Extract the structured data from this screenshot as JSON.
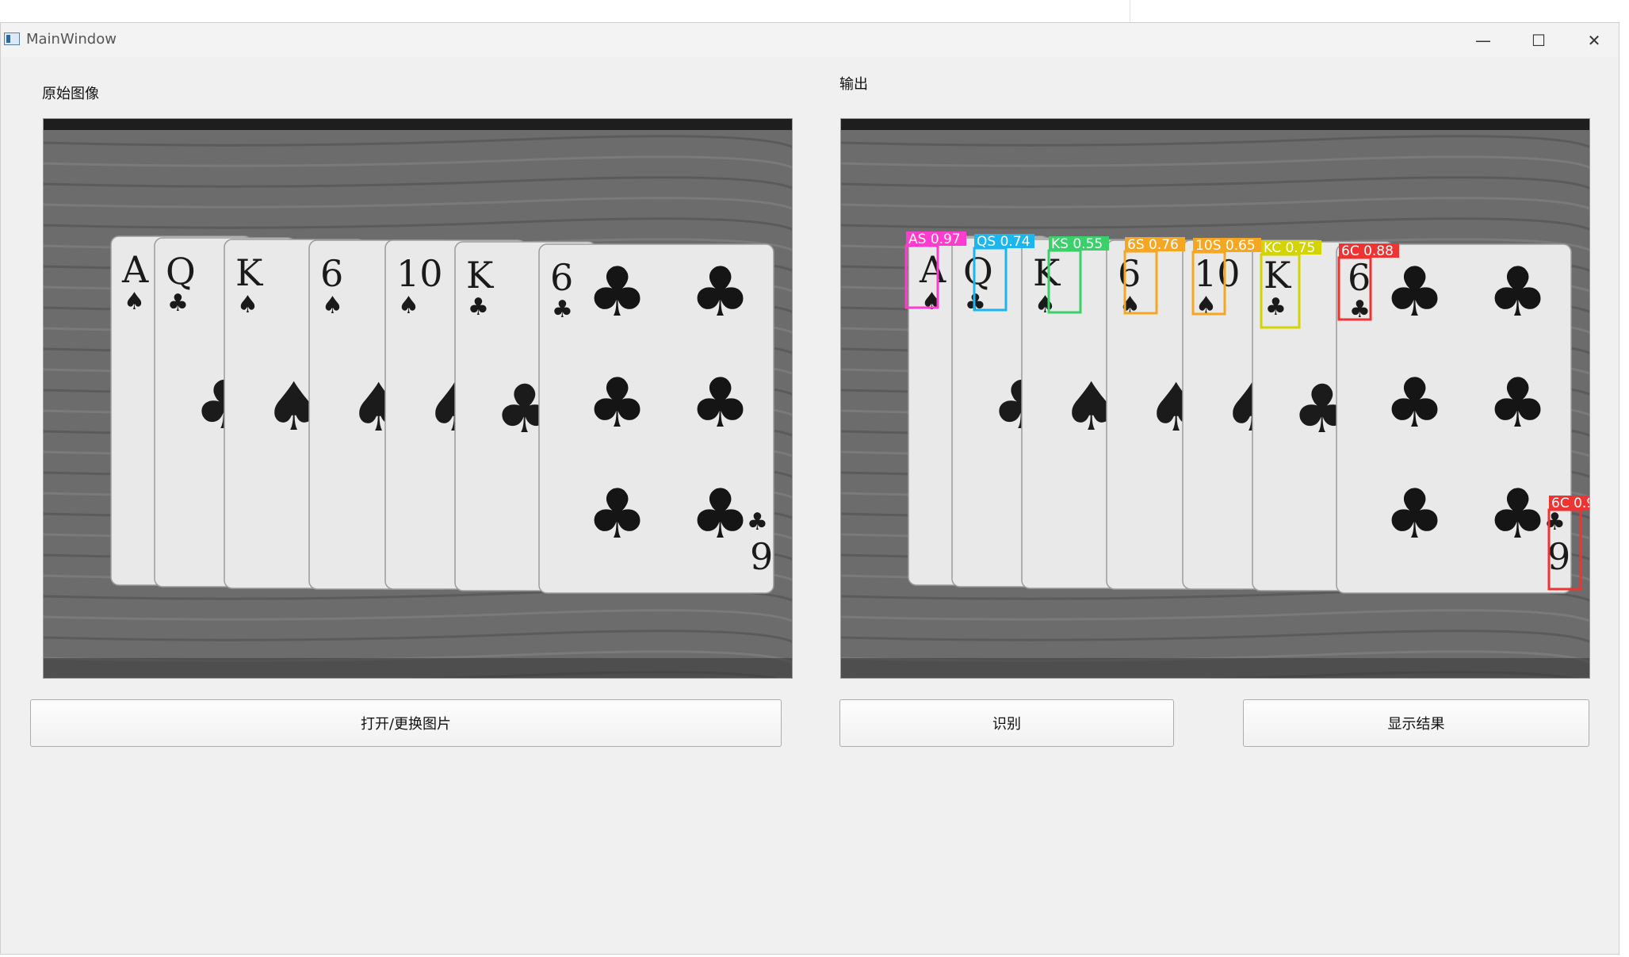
{
  "window": {
    "title": "MainWindow",
    "controls": {
      "minimize": "—",
      "maximize": "☐",
      "close": "✕"
    }
  },
  "left_panel": {
    "label": "原始图像"
  },
  "right_panel": {
    "label": "输出"
  },
  "buttons": {
    "open": "打开/更换图片",
    "recognize": "识别",
    "show": "显示结果"
  },
  "cards": [
    {
      "rank": "A",
      "suit": "♠"
    },
    {
      "rank": "Q",
      "suit": "♣"
    },
    {
      "rank": "K",
      "suit": "♠"
    },
    {
      "rank": "6",
      "suit": "♠"
    },
    {
      "rank": "10",
      "suit": "♠"
    },
    {
      "rank": "K",
      "suit": "♣"
    },
    {
      "rank": "6",
      "suit": "♣"
    }
  ],
  "corner_rank": "9",
  "detections": [
    {
      "text": "AS 0.97",
      "color": "#ff3bd0"
    },
    {
      "text": "QS 0.74",
      "color": "#1bb6f0"
    },
    {
      "text": "KS 0.55",
      "color": "#3ad06a"
    },
    {
      "text": "6S 0.76",
      "color": "#f5a623"
    },
    {
      "text": "10S 0.65",
      "color": "#f5a623"
    },
    {
      "text": "KC 0.75",
      "color": "#d4d400"
    },
    {
      "text": "6C 0.88",
      "color": "#ee3333"
    },
    {
      "text": "6C 0.9",
      "color": "#ee3333"
    }
  ]
}
